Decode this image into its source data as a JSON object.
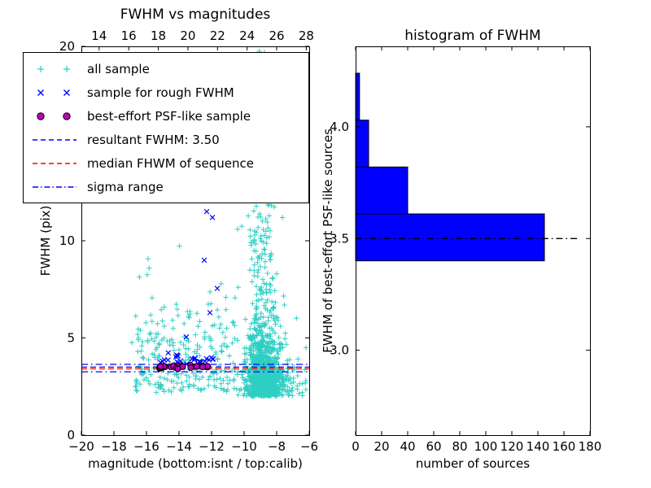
{
  "figure": {
    "background": "#ffffff"
  },
  "chart_data": [
    {
      "type": "scatter",
      "title": "FWHM vs magnitudes",
      "xlabel": "magnitude (bottom:isnt / top:calib)",
      "ylabel": "FWHM (pix)",
      "xlim": [
        -20,
        -6
      ],
      "ylim": [
        0,
        20
      ],
      "x_ticks": [
        -20,
        -18,
        -16,
        -14,
        -12,
        -10,
        -8,
        -6
      ],
      "x_tick_labels": [
        "−20",
        "−18",
        "−16",
        "−14",
        "−12",
        "−10",
        "−8",
        "−6"
      ],
      "top_axis": {
        "lim": [
          12.8,
          28.2
        ],
        "ticks": [
          14,
          16,
          18,
          20,
          22,
          24,
          26,
          28
        ],
        "labels": [
          "14",
          "16",
          "18",
          "20",
          "22",
          "24",
          "26",
          "28"
        ]
      },
      "y_ticks": [
        0,
        5,
        10,
        15,
        20
      ],
      "y_tick_labels": [
        "0",
        "5",
        "10",
        "15",
        "20"
      ],
      "grid": false,
      "legend_position": "upper left",
      "series": [
        {
          "name": "all sample",
          "marker": "plus",
          "color": "#2fcec3",
          "clusters": [
            {
              "count": 800,
              "x": {
                "dist": "gauss",
                "mean": -8.75,
                "sd": 0.55,
                "min": -10.6,
                "max": -7.2
              },
              "y": {
                "dist": "halfgauss",
                "base": 2.0,
                "scale": 1.6,
                "max": 20
              }
            },
            {
              "count": 380,
              "x": {
                "dist": "gauss",
                "mean": -8.9,
                "sd": 0.5,
                "min": -10.4,
                "max": -7.4
              },
              "y": {
                "dist": "power",
                "base": 2.2,
                "range": 17.6,
                "exp": 2.0
              }
            },
            {
              "count": 240,
              "x": {
                "dist": "uniform",
                "min": -16.7,
                "max": -10.5
              },
              "y": {
                "dist": "halfgauss",
                "base": 2.2,
                "scale": 2.3,
                "max": 12.2
              }
            },
            {
              "count": 130,
              "x": {
                "dist": "gauss",
                "mean": -8.1,
                "sd": 1.0,
                "min": -11.0,
                "max": -6.2
              },
              "y": {
                "dist": "halfgauss",
                "base": 2.0,
                "scale": 1.1,
                "max": 5.5
              }
            },
            {
              "count": 25,
              "x": {
                "dist": "uniform",
                "min": -16.9,
                "max": -6.3
              },
              "y": {
                "dist": "uniform",
                "min": 2.0,
                "max": 6.8
              }
            }
          ]
        },
        {
          "name": "sample for rough FWHM",
          "marker": "x",
          "color": "#0000ff",
          "clusters": [
            {
              "count": 30,
              "x": {
                "dist": "uniform",
                "min": -15.3,
                "max": -11.9
              },
              "y": {
                "dist": "gauss",
                "mean": 3.85,
                "sd": 0.15,
                "min": 3.55,
                "max": 4.35
              }
            }
          ],
          "points": [
            [
              -12.3,
              11.5
            ],
            [
              -11.95,
              11.2
            ],
            [
              -12.45,
              9.0
            ],
            [
              -11.65,
              7.55
            ],
            [
              -12.1,
              6.3
            ],
            [
              -13.55,
              5.05
            ]
          ]
        },
        {
          "name": "best-effort PSF-like sample",
          "marker": "circle",
          "color": "#bf00bf",
          "edge": "#000000",
          "clusters": [
            {
              "count": 26,
              "x": {
                "dist": "uniform",
                "min": -15.25,
                "max": -12.1
              },
              "y": {
                "dist": "gauss",
                "mean": 3.49,
                "sd": 0.05,
                "min": 3.36,
                "max": 3.62
              }
            }
          ]
        }
      ],
      "hlines": [
        {
          "name": "resultant-fwhm",
          "y": 3.5,
          "style": "dashed",
          "color": "#0000ff"
        },
        {
          "name": "median-fwhm-of-sequence",
          "y": 3.41,
          "style": "dashed",
          "color": "#ff0000"
        },
        {
          "name": "sigma-range-upper",
          "y": 3.64,
          "style": "dashdot",
          "color": "#0000ff"
        },
        {
          "name": "sigma-range-lower",
          "y": 3.26,
          "style": "dashdot",
          "color": "#0000ff"
        }
      ],
      "legend": [
        {
          "label": "all sample",
          "type": "marker",
          "marker": "plus",
          "color": "#2fcec3"
        },
        {
          "label": "sample for rough FWHM",
          "type": "marker",
          "marker": "x",
          "color": "#0000ff"
        },
        {
          "label": "best-effort PSF-like sample",
          "type": "marker",
          "marker": "circle",
          "color": "#bf00bf"
        },
        {
          "label": "resultant FWHM: 3.50",
          "type": "line",
          "style": "dashed",
          "color": "#0000ff"
        },
        {
          "label": "median FHWM of sequence",
          "type": "line",
          "style": "dashed",
          "color": "#ff0000"
        },
        {
          "label": "sigma range",
          "type": "line",
          "style": "dashdot",
          "color": "#0000ff"
        }
      ]
    },
    {
      "type": "bar-h",
      "title": "histogram of FWHM",
      "xlabel": "number of sources",
      "ylabel": "FWHM of best-effort PSF-like sources",
      "xlim": [
        0,
        180
      ],
      "ylim": [
        2.62,
        4.36
      ],
      "x_ticks": [
        0,
        20,
        40,
        60,
        80,
        100,
        120,
        140,
        160,
        180
      ],
      "x_tick_labels": [
        "0",
        "20",
        "40",
        "60",
        "80",
        "100",
        "120",
        "140",
        "160",
        "180"
      ],
      "y_ticks": [
        3.0,
        3.5,
        4.0
      ],
      "y_tick_labels": [
        "3.0",
        "3.5",
        "4.0"
      ],
      "bar_color": "#0000ff",
      "bar_edge": "#000000",
      "bins": {
        "edges": [
          3.4,
          3.61,
          3.82,
          4.03,
          4.24
        ],
        "counts": [
          145,
          40,
          10,
          3
        ]
      },
      "hline": {
        "y": 3.5,
        "style": "dashdot",
        "color": "#000000",
        "x_end": 172
      }
    }
  ]
}
